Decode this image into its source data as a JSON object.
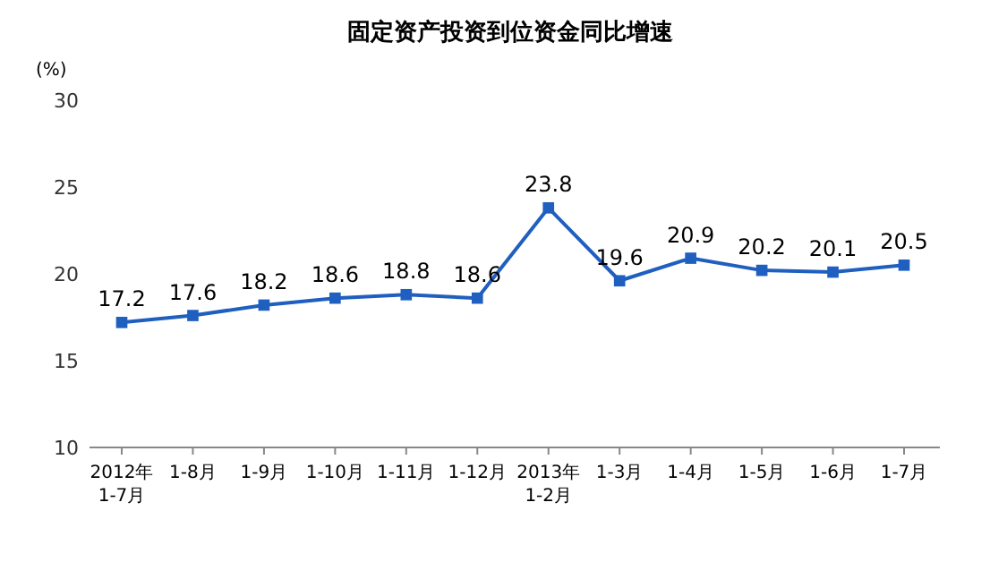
{
  "chart_data": {
    "type": "line",
    "title": "固定资产投资到位资金同比增速",
    "ylabel": "(%)",
    "categories": [
      "2012年\n1-7月",
      "1-8月",
      "1-9月",
      "1-10月",
      "1-11月",
      "1-12月",
      "2013年\n1-2月",
      "1-3月",
      "1-4月",
      "1-5月",
      "1-6月",
      "1-7月"
    ],
    "series": [
      {
        "color": "#1f5fbf",
        "values": [
          17.2,
          17.6,
          18.2,
          18.6,
          18.8,
          18.6,
          23.8,
          19.6,
          20.9,
          20.2,
          20.1,
          20.5
        ]
      }
    ],
    "ylim": [
      10,
      30
    ],
    "yticks": [
      10,
      15,
      20,
      25,
      30
    ],
    "marker": "square",
    "data_labels": true
  }
}
